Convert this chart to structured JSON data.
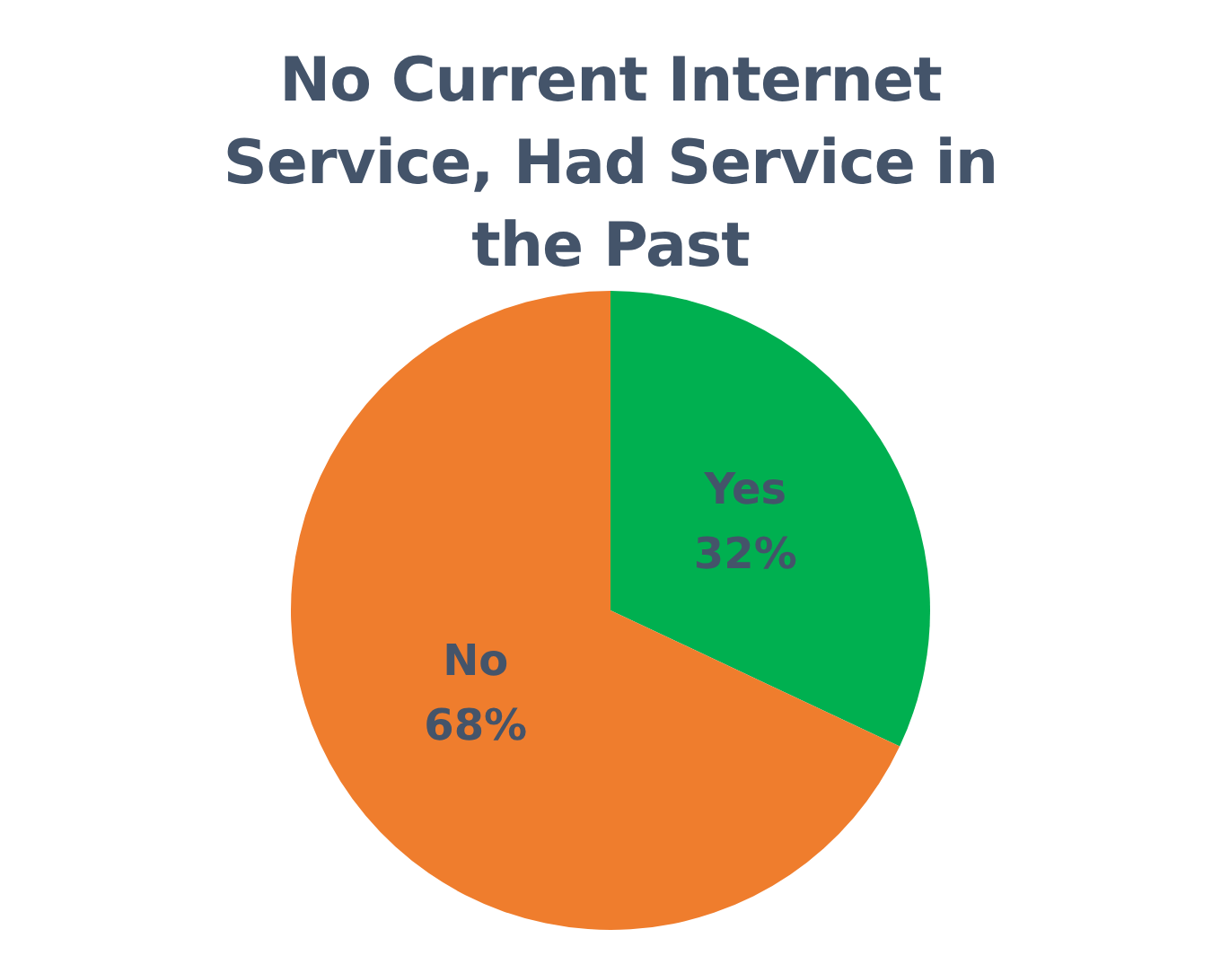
{
  "chart_data": {
    "type": "pie",
    "title": "No Current Internet Service, Had Service in the Past",
    "categories": [
      "Yes",
      "No"
    ],
    "values": [
      32,
      68
    ],
    "value_labels": [
      "32%",
      "68%"
    ],
    "colors": [
      "#00b050",
      "#ef7d2d"
    ],
    "legend": false
  }
}
